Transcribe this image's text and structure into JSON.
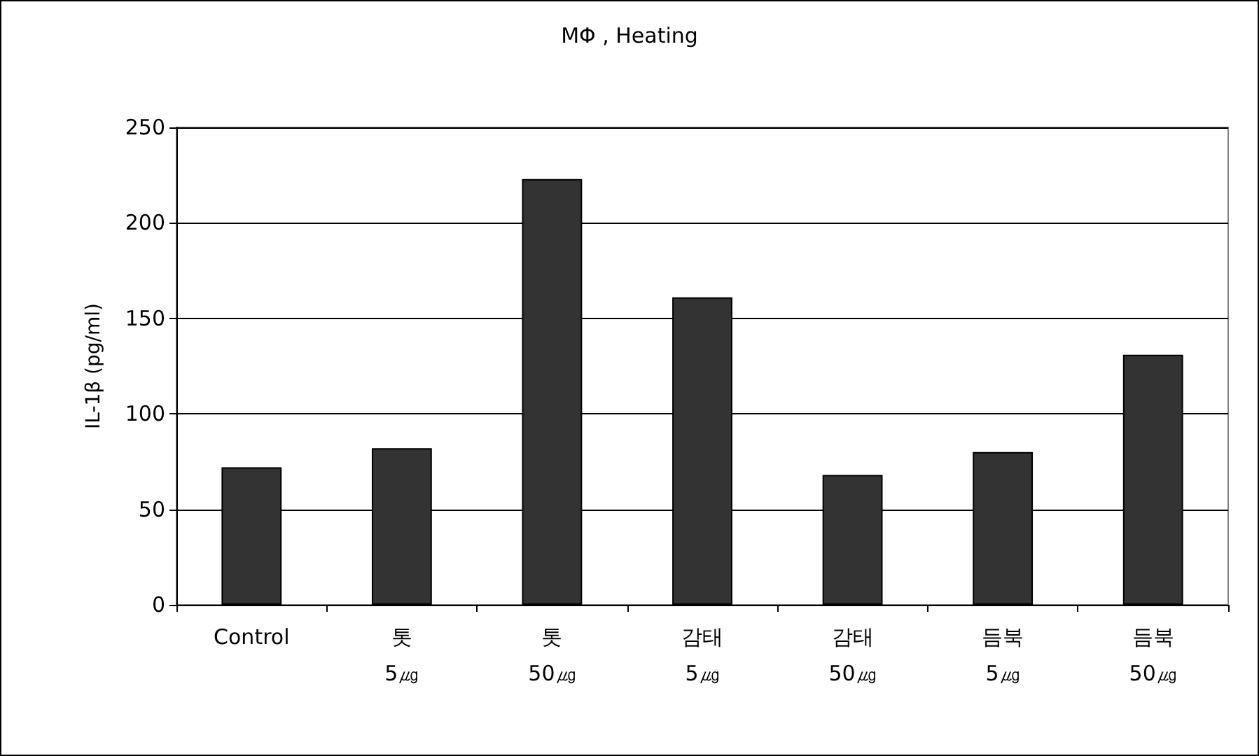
{
  "chart_data": {
    "type": "bar",
    "title": "MΦ , Heating",
    "ylabel": "IL-1β (pg/ml)",
    "categories": [
      "Control",
      "톳\n5㎍",
      "톳\n50㎍",
      "감태\n5㎍",
      "감태\n50㎍",
      "듬북\n5㎍",
      "듬북\n50㎍"
    ],
    "values": [
      72,
      82,
      223,
      161,
      68,
      80,
      131
    ],
    "color": "#333333",
    "ylim": [
      0,
      250
    ],
    "yticks": [
      0,
      50,
      100,
      150,
      200,
      250
    ],
    "grid": "y"
  }
}
